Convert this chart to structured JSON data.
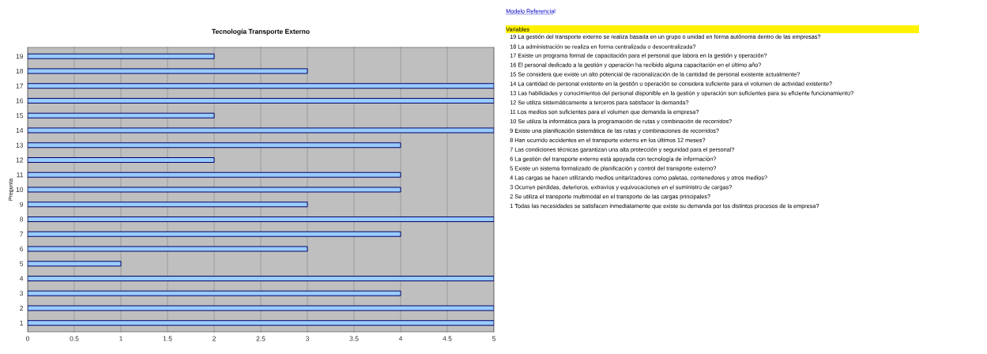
{
  "chart_data": {
    "type": "bar",
    "orientation": "horizontal",
    "title": "Tecnología Transporte Externo",
    "ylabel": "Pregunta",
    "categories": [
      "19",
      "18",
      "17",
      "16",
      "15",
      "14",
      "13",
      "12",
      "11",
      "10",
      "9",
      "8",
      "7",
      "6",
      "5",
      "4",
      "3",
      "2",
      "1"
    ],
    "values": [
      2,
      3,
      5,
      5,
      2,
      5,
      4,
      2,
      4,
      4,
      3,
      5,
      4,
      3,
      1,
      5,
      4,
      5,
      5
    ],
    "color": "#99ccff",
    "xlim": [
      0,
      5
    ],
    "xticks": [
      0,
      0.5,
      1,
      1.5,
      2,
      2.5,
      3,
      3.5,
      4,
      4.5,
      5
    ],
    "grid": "x",
    "annotations": [
      "Modelo Referencial",
      "Variables",
      "19 La gestión del transporte externo se realiza basada en un grupo o unidad en forma autónoma dentro de las empresas?",
      "18 La administración se realiza en forma centralizada o descentralizada?",
      "17 Existe un programa formal de capacitación para el personal que labora en la gestión y operación?",
      "16 El personal dedicado a la gestión y operación ha recibido alguna capacitación en el último año?",
      "15 Se considera que existe un alto potencial de racionalización de la cantidad de personal existente actualmente?",
      "14 La cantidad de personal existente en la gestión u operación se considera suficiente para el volumen de actividad existente?",
      "13 Las habilidades y conocimientos del personal disponible en la gestión y operación son suficientes para su eficiente funcionamiento?",
      "12 Se utiliza sistemáticamente a terceros para satisfacer la demanda?",
      "11 Los medios son suficientes para el volumen que demanda la empresa?",
      "10 Se utiliza la informática para la programación de rutas y combinación de recorridos?",
      "9 Existe una planificación sistemática de las rutas y combinaciones de recorridos?",
      "8 Han ocurrido accidentes en el transporte externo en los últimos 12 meses?",
      "7 Las condiciones técnicas garantizan una alta protección y seguridad para el personal?",
      "6 La gestión del transporte externo está apoyada con tecnología de información?",
      "5 Existe un sistema formalizado de planificación y control del transporte externo?",
      "4 Las cargas se hacen utilizando medios unitarizadores como paletas, contenedores y otros medios?",
      "3 Ocurren pérdidas, deterioros, extravíos y equivocaciones en el suministro de cargas?",
      "2 Se utiliza el transporte multimodal en el transporte de las cargas principales?",
      "1 Todas las necesidades se satisfacen inmediatamente que existe su demanda por los distintos procesos de la empresa?"
    ]
  }
}
